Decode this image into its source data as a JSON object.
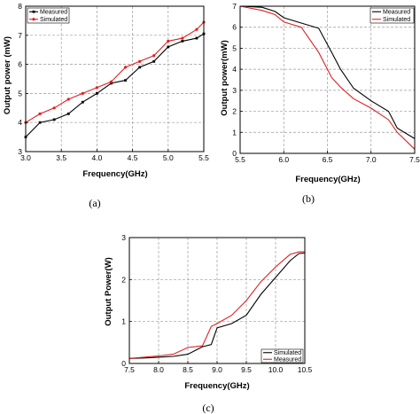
{
  "chart_data": [
    {
      "panel": "(a)",
      "type": "line",
      "xlabel": "Frequency(GHz)",
      "ylabel": "Output power (mW)",
      "xlim": [
        3.0,
        5.5
      ],
      "ylim": [
        3,
        8
      ],
      "xticks": [
        "3.0",
        "3.5",
        "4.0",
        "4.5",
        "5.0",
        "5.5"
      ],
      "yticks": [
        "3",
        "4",
        "5",
        "6",
        "7",
        "8"
      ],
      "grid": true,
      "legend_position": "top-left",
      "series": [
        {
          "name": "Measured",
          "color": "#000000",
          "marker": "square",
          "x": [
            3.0,
            3.2,
            3.4,
            3.6,
            3.8,
            4.0,
            4.2,
            4.4,
            4.6,
            4.8,
            5.0,
            5.2,
            5.4,
            5.5
          ],
          "y": [
            3.5,
            4.0,
            4.1,
            4.3,
            4.7,
            5.0,
            5.35,
            5.45,
            5.9,
            6.1,
            6.6,
            6.8,
            6.9,
            7.05
          ]
        },
        {
          "name": "Simulated",
          "color": "#e02020",
          "marker": "circle",
          "x": [
            3.0,
            3.2,
            3.4,
            3.6,
            3.8,
            4.0,
            4.2,
            4.4,
            4.6,
            4.8,
            5.0,
            5.2,
            5.4,
            5.5
          ],
          "y": [
            4.0,
            4.3,
            4.5,
            4.8,
            5.0,
            5.2,
            5.4,
            5.9,
            6.1,
            6.3,
            6.8,
            6.9,
            7.2,
            7.45
          ]
        }
      ]
    },
    {
      "panel": "(b)",
      "type": "line",
      "xlabel": "Frequency(GHz)",
      "ylabel": "Output power(mW)",
      "xlim": [
        5.5,
        7.5
      ],
      "ylim": [
        0,
        7
      ],
      "xticks": [
        "5.5",
        "6.0",
        "6.5",
        "7.0",
        "7.5"
      ],
      "yticks": [
        "0",
        "1",
        "2",
        "3",
        "4",
        "5",
        "6",
        "7"
      ],
      "grid": true,
      "legend_position": "top-right",
      "series": [
        {
          "name": "Measured",
          "color": "#000000",
          "x": [
            5.5,
            5.75,
            5.9,
            6.0,
            6.2,
            6.4,
            6.55,
            6.65,
            6.8,
            7.0,
            7.2,
            7.3,
            7.5
          ],
          "y": [
            7.0,
            6.95,
            6.75,
            6.45,
            6.2,
            5.95,
            4.8,
            4.0,
            3.1,
            2.5,
            2.0,
            1.2,
            0.7
          ]
        },
        {
          "name": "Simulated",
          "color": "#e02020",
          "x": [
            5.5,
            5.75,
            5.9,
            6.0,
            6.2,
            6.4,
            6.55,
            6.65,
            6.8,
            7.0,
            7.2,
            7.3,
            7.5
          ],
          "y": [
            7.0,
            6.8,
            6.6,
            6.25,
            6.0,
            4.8,
            3.6,
            3.15,
            2.6,
            2.15,
            1.6,
            1.0,
            0.2
          ]
        }
      ]
    },
    {
      "panel": "(c)",
      "type": "line",
      "xlabel": "Frequency(GHz)",
      "ylabel": "Output Power(W)",
      "xlim": [
        7.5,
        10.5
      ],
      "ylim": [
        0,
        3
      ],
      "xticks": [
        "7.5",
        "8.0",
        "8.5",
        "9.0",
        "9.5",
        "10.0",
        "10.5"
      ],
      "yticks": [
        "0",
        "1",
        "2",
        "3"
      ],
      "grid": true,
      "legend_position": "bottom-right",
      "series": [
        {
          "name": "Simulated",
          "color": "#000000",
          "x": [
            7.5,
            7.75,
            8.0,
            8.25,
            8.5,
            8.75,
            8.9,
            9.0,
            9.25,
            9.5,
            9.75,
            10.0,
            10.25,
            10.4,
            10.5
          ],
          "y": [
            0.12,
            0.13,
            0.15,
            0.17,
            0.22,
            0.4,
            0.45,
            0.85,
            0.95,
            1.15,
            1.65,
            2.05,
            2.45,
            2.62,
            2.63
          ]
        },
        {
          "name": "Measured",
          "color": "#e02020",
          "x": [
            7.5,
            7.75,
            8.0,
            8.25,
            8.5,
            8.75,
            8.9,
            9.0,
            9.25,
            9.5,
            9.75,
            10.0,
            10.25,
            10.4,
            10.5
          ],
          "y": [
            0.12,
            0.15,
            0.18,
            0.22,
            0.38,
            0.42,
            0.88,
            0.95,
            1.15,
            1.5,
            1.95,
            2.3,
            2.6,
            2.66,
            2.66
          ]
        }
      ]
    }
  ]
}
